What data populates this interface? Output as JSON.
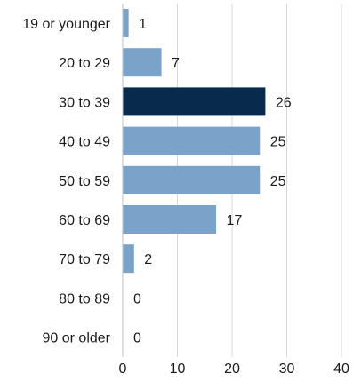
{
  "chart_data": {
    "type": "bar",
    "orientation": "horizontal",
    "categories": [
      "19 or younger",
      "20 to 29",
      "30 to 39",
      "40 to 49",
      "50 to 59",
      "60 to 69",
      "70 to 79",
      "80 to 89",
      "90 or older"
    ],
    "values": [
      1,
      7,
      26,
      25,
      25,
      17,
      2,
      0,
      0
    ],
    "highlight_index": 2,
    "xlim": [
      0,
      40
    ],
    "xticks": [
      0,
      10,
      20,
      30,
      40
    ],
    "grid": "vertical",
    "title": "",
    "xlabel": "",
    "ylabel": "",
    "colors": {
      "bar": "#7ba3c9",
      "highlight": "#082a4d",
      "grid": "#d9d9d9",
      "axis": "#bfbfbf",
      "text": "#1a1a1a"
    }
  }
}
